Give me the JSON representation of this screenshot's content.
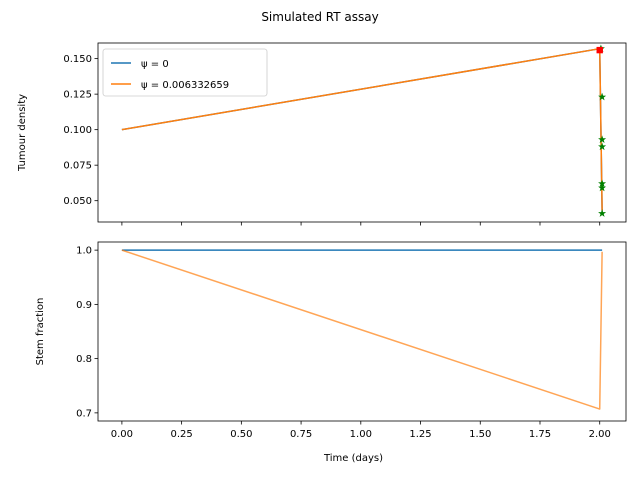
{
  "chart_data": {
    "suptitle": "Simulated RT assay",
    "xlabel": "Time (days)",
    "x_ticks": [
      0.0,
      0.25,
      0.5,
      0.75,
      1.0,
      1.25,
      1.5,
      1.75,
      2.0
    ],
    "x_tick_labels": [
      "0.00",
      "0.25",
      "0.50",
      "0.75",
      "1.00",
      "1.25",
      "1.50",
      "1.75",
      "2.00"
    ],
    "xlim": [
      -0.1,
      2.11
    ],
    "colors": {
      "psi0": "#1f77b4",
      "psi1": "#ff7f0e",
      "marker_green": "#008000",
      "marker_red": "#ff0000"
    },
    "panels": [
      {
        "type": "line",
        "ylabel": "Tumour density",
        "ylim": [
          0.035,
          0.161
        ],
        "y_ticks": [
          0.05,
          0.075,
          0.1,
          0.125,
          0.15
        ],
        "y_tick_labels": [
          "0.050",
          "0.075",
          "0.100",
          "0.125",
          "0.150"
        ],
        "show_x_tick_labels": false,
        "legend": {
          "position": "upper-left",
          "entries": [
            {
              "label": "ψ = 0",
              "series": 0
            },
            {
              "label": "ψ = 0.006332659",
              "series": 1
            }
          ]
        },
        "series": [
          {
            "name": "ψ = 0",
            "color_key": "psi0",
            "x": [
              0.0,
              2.0,
              2.01
            ],
            "y": [
              0.1,
              0.157,
              0.043
            ]
          },
          {
            "name": "ψ = 0.006332659",
            "color_key": "psi1",
            "x": [
              0.0,
              2.0,
              2.01
            ],
            "y": [
              0.1,
              0.157,
              0.043
            ]
          }
        ],
        "markers": [
          {
            "x": 2.005,
            "y": 0.157,
            "color_key": "marker_green"
          },
          {
            "x": 2.01,
            "y": 0.123,
            "color_key": "marker_green"
          },
          {
            "x": 2.01,
            "y": 0.093,
            "color_key": "marker_green"
          },
          {
            "x": 2.01,
            "y": 0.088,
            "color_key": "marker_green"
          },
          {
            "x": 2.01,
            "y": 0.062,
            "color_key": "marker_green"
          },
          {
            "x": 2.01,
            "y": 0.059,
            "color_key": "marker_green"
          },
          {
            "x": 2.01,
            "y": 0.041,
            "color_key": "marker_green"
          },
          {
            "x": 2.0,
            "y": 0.156,
            "color_key": "marker_red",
            "shape": "square"
          }
        ]
      },
      {
        "type": "line",
        "ylabel": "Stem fraction",
        "ylim": [
          0.685,
          1.015
        ],
        "y_ticks": [
          0.7,
          0.8,
          0.9,
          1.0
        ],
        "y_tick_labels": [
          "0.7",
          "0.8",
          "0.9",
          "1.0"
        ],
        "show_x_tick_labels": true,
        "series": [
          {
            "name": "ψ = 0",
            "color_key": "psi0",
            "x": [
              0.0,
              2.01
            ],
            "y": [
              1.0,
              1.0
            ]
          },
          {
            "name": "ψ = 0.006332659",
            "color_key": "psi1",
            "x": [
              0.0,
              2.0,
              2.01
            ],
            "y": [
              1.0,
              0.707,
              0.997
            ]
          }
        ]
      }
    ]
  }
}
